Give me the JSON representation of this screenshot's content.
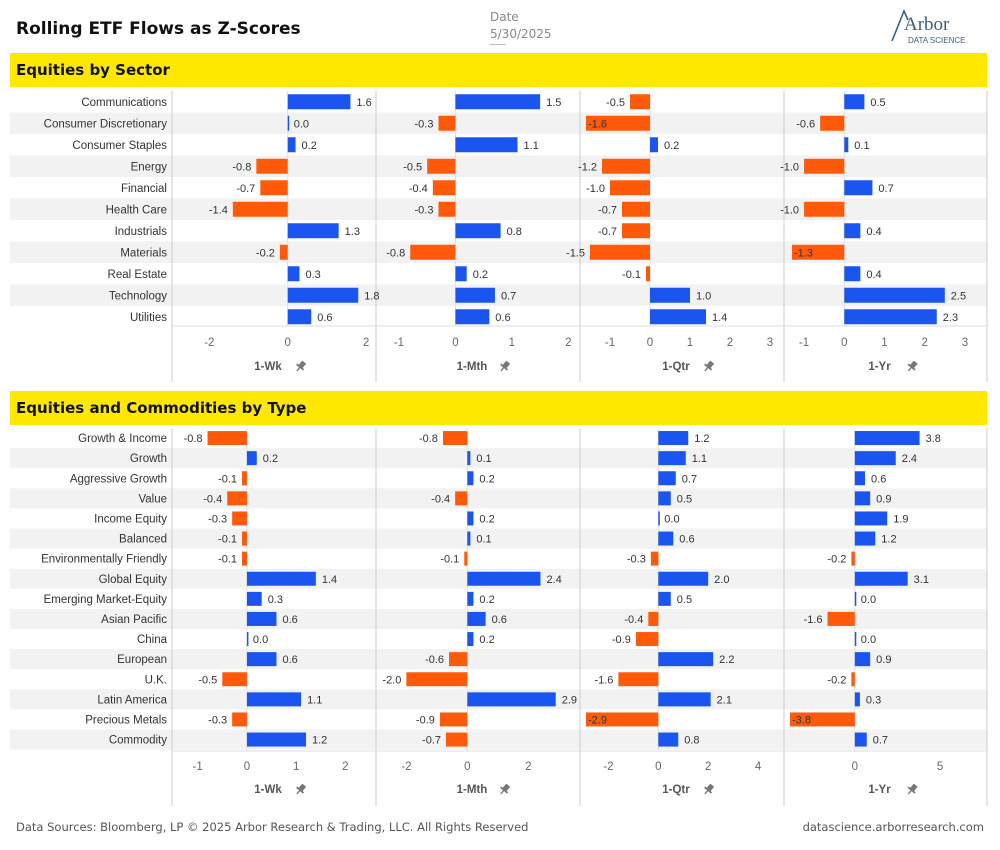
{
  "title": "Rolling ETF Flows as Z-Scores",
  "date_label": "Date",
  "date_value": "5/30/2025",
  "logo": {
    "main": "Arbor",
    "sub": "DATA SCIENCE"
  },
  "footer": {
    "left": "Data Sources: Bloomberg, LP © 2025 Arbor Research & Trading, LLC. All Rights Reserved",
    "right": "datascience.arborresearch.com"
  },
  "colors": {
    "positive": "#1a55f0",
    "negative": "#ff5a0a",
    "banner": "#ffe800",
    "row_band": "#f2f2f2"
  },
  "pin_icon": "pushpin-icon",
  "chart_data": [
    {
      "type": "bar",
      "orientation": "horizontal",
      "title": "Equities by Sector",
      "categories": [
        "Communications",
        "Consumer Discretionary",
        "Consumer Staples",
        "Energy",
        "Financial",
        "Health Care",
        "Industrials",
        "Materials",
        "Real Estate",
        "Technology",
        "Utilities"
      ],
      "panels": [
        {
          "name": "1-Wk",
          "xlim": [
            -2.8,
            2.1
          ],
          "ticks": [
            -2,
            0,
            2
          ],
          "values": [
            1.6,
            0.0,
            0.2,
            -0.8,
            -0.7,
            -1.4,
            1.3,
            -0.2,
            0.3,
            1.8,
            0.6
          ],
          "labels": [
            "1.6",
            "0.0",
            "0.2",
            "-0.8",
            "-0.7",
            "-1.4",
            "1.3",
            "-0.2",
            "0.3",
            "1.8",
            "0.6"
          ]
        },
        {
          "name": "1-Mth",
          "xlim": [
            -1.3,
            2.1
          ],
          "ticks": [
            -1,
            0,
            1,
            2
          ],
          "values": [
            1.5,
            -0.3,
            1.1,
            -0.5,
            -0.4,
            -0.3,
            0.8,
            -0.8,
            0.2,
            0.7,
            0.6
          ],
          "labels": [
            "1.5",
            "-0.3",
            "1.1",
            "-0.5",
            "-0.4",
            "-0.3",
            "0.8",
            "-0.8",
            "0.2",
            "0.7",
            "0.6"
          ]
        },
        {
          "name": "1-Qtr",
          "xlim": [
            -1.6,
            3.2
          ],
          "ticks": [
            -1,
            0,
            1,
            2,
            3
          ],
          "values": [
            -0.5,
            -1.6,
            0.2,
            -1.2,
            -1.0,
            -0.7,
            -0.7,
            -1.5,
            -0.1,
            1.0,
            1.4
          ],
          "labels": [
            "-0.5",
            "-1.6",
            "0.2",
            "-1.2",
            "-1.0",
            "-0.7",
            "-0.7",
            "-1.5",
            "-0.1",
            "1.0",
            "1.4"
          ]
        },
        {
          "name": "1-Yr",
          "xlim": [
            -1.35,
            3.4
          ],
          "ticks": [
            -1,
            0,
            1,
            2,
            3
          ],
          "values": [
            0.5,
            -0.6,
            0.1,
            -1.0,
            0.7,
            -1.0,
            0.4,
            -1.3,
            0.4,
            2.5,
            2.3
          ],
          "labels": [
            "0.5",
            "-0.6",
            "0.1",
            "-1.0",
            "0.7",
            "-1.0",
            "0.4",
            "-1.3",
            "0.4",
            "2.5",
            "2.3"
          ]
        }
      ]
    },
    {
      "type": "bar",
      "orientation": "horizontal",
      "title": "Equities and Commodities by Type",
      "categories": [
        "Growth & Income",
        "Growth",
        "Aggressive Growth",
        "Value",
        "Income Equity",
        "Balanced",
        "Environmentally Friendly",
        "Global Equity",
        "Emerging Market-Equity",
        "Asian Pacific",
        "China",
        "European",
        "U.K.",
        "Latin America",
        "Precious Metals",
        "Commodity"
      ],
      "panels": [
        {
          "name": "1-Wk",
          "xlim": [
            -1.4,
            2.5
          ],
          "ticks": [
            -1,
            0,
            1,
            2
          ],
          "values": [
            -0.8,
            0.2,
            -0.1,
            -0.4,
            -0.3,
            -0.1,
            -0.1,
            1.4,
            0.3,
            0.6,
            0.0,
            0.6,
            -0.5,
            1.1,
            -0.3,
            1.2
          ],
          "labels": [
            "-0.8",
            "0.2",
            "-0.1",
            "-0.4",
            "-0.3",
            "-0.1",
            "-0.1",
            "1.4",
            "0.3",
            "0.6",
            "0.0",
            "0.6",
            "-0.5",
            "1.1",
            "-0.3",
            "1.2"
          ]
        },
        {
          "name": "1-Mth",
          "xlim": [
            -2.8,
            3.5
          ],
          "ticks": [
            -2,
            0,
            2
          ],
          "values": [
            -0.8,
            0.1,
            0.2,
            -0.4,
            0.2,
            0.1,
            -0.1,
            2.4,
            0.2,
            0.6,
            0.2,
            -0.6,
            -2.0,
            2.9,
            -0.9,
            -0.7
          ],
          "labels": [
            "-0.8",
            "0.1",
            "0.2",
            "-0.4",
            "0.2",
            "0.1",
            "-0.1",
            "2.4",
            "0.2",
            "0.6",
            "0.2",
            "-0.6",
            "-2.0",
            "2.9",
            "-0.9",
            "-0.7"
          ]
        },
        {
          "name": "1-Qtr",
          "xlim": [
            -2.9,
            4.8
          ],
          "ticks": [
            -2,
            0,
            2,
            4
          ],
          "values": [
            1.2,
            1.1,
            0.7,
            0.5,
            0.0,
            0.6,
            -0.3,
            2.0,
            0.5,
            -0.4,
            -0.9,
            2.2,
            -1.6,
            2.1,
            -2.9,
            0.8
          ],
          "labels": [
            "1.2",
            "1.1",
            "0.7",
            "0.5",
            "0.0",
            "0.6",
            "-0.3",
            "2.0",
            "0.5",
            "-0.4",
            "-0.9",
            "2.2",
            "-1.6",
            "2.1",
            "-2.9",
            "0.8"
          ]
        },
        {
          "name": "1-Yr",
          "xlim": [
            -3.8,
            7.4
          ],
          "ticks": [
            0,
            5
          ],
          "values": [
            3.8,
            2.4,
            0.6,
            0.9,
            1.9,
            1.2,
            -0.2,
            3.1,
            0.0,
            -1.6,
            0.0,
            0.9,
            -0.2,
            0.3,
            -3.8,
            0.7
          ],
          "labels": [
            "3.8",
            "2.4",
            "0.6",
            "0.9",
            "1.9",
            "1.2",
            "-0.2",
            "3.1",
            "0.0",
            "-1.6",
            "0.0",
            "0.9",
            "-0.2",
            "0.3",
            "-3.8",
            "0.7"
          ]
        }
      ]
    }
  ]
}
